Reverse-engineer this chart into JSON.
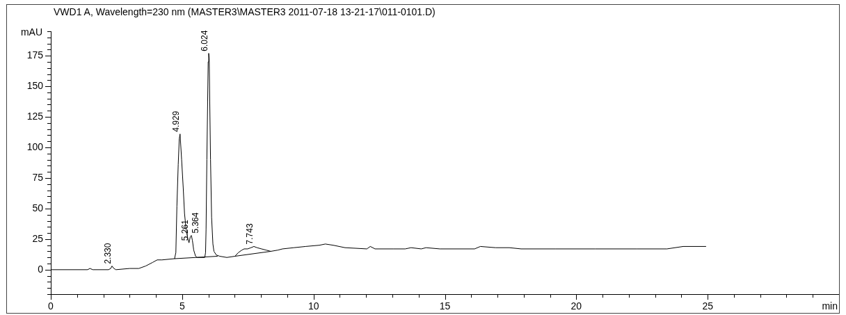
{
  "chart_data": {
    "type": "line",
    "title": "VWD1 A, Wavelength=230 nm (MASTER3\\MASTER3 2011-07-18 13-21-17\\011-0101.D)",
    "xlabel": "min",
    "ylabel": "mAU",
    "xlim": [
      0,
      30
    ],
    "ylim": [
      -20,
      195
    ],
    "xticks": [
      0,
      {
        "value": 1,
        "label": null
      },
      {
        "value": 2,
        "label": null
      },
      {
        "value": 3,
        "label": null
      },
      {
        "value": 4,
        "label": null
      },
      5,
      {
        "value": 6,
        "label": null
      },
      {
        "value": 7,
        "label": null
      },
      {
        "value": 8,
        "label": null
      },
      {
        "value": 9,
        "label": null
      },
      10,
      {
        "value": 11,
        "label": null
      },
      {
        "value": 12,
        "label": null
      },
      {
        "value": 13,
        "label": null
      },
      {
        "value": 14,
        "label": null
      },
      15,
      {
        "value": 16,
        "label": null
      },
      {
        "value": 17,
        "label": null
      },
      {
        "value": 18,
        "label": null
      },
      {
        "value": 19,
        "label": null
      },
      20,
      {
        "value": 21,
        "label": null
      },
      {
        "value": 22,
        "label": null
      },
      {
        "value": 23,
        "label": null
      },
      {
        "value": 24,
        "label": null
      },
      25,
      {
        "value": 26,
        "label": null
      },
      {
        "value": 27,
        "label": null
      },
      {
        "value": 28,
        "label": null
      },
      {
        "value": 29,
        "label": null
      }
    ],
    "yticks": [
      {
        "value": -20,
        "label": null
      },
      {
        "value": -15,
        "label": null
      },
      {
        "value": -10,
        "label": null
      },
      {
        "value": -5,
        "label": null
      },
      0,
      {
        "value": 5,
        "label": null
      },
      {
        "value": 10,
        "label": null
      },
      {
        "value": 15,
        "label": null
      },
      {
        "value": 20,
        "label": null
      },
      25,
      {
        "value": 30,
        "label": null
      },
      {
        "value": 35,
        "label": null
      },
      {
        "value": 40,
        "label": null
      },
      {
        "value": 45,
        "label": null
      },
      50,
      {
        "value": 55,
        "label": null
      },
      {
        "value": 60,
        "label": null
      },
      {
        "value": 65,
        "label": null
      },
      {
        "value": 70,
        "label": null
      },
      75,
      {
        "value": 80,
        "label": null
      },
      {
        "value": 85,
        "label": null
      },
      {
        "value": 90,
        "label": null
      },
      {
        "value": 95,
        "label": null
      },
      100,
      {
        "value": 105,
        "label": null
      },
      {
        "value": 110,
        "label": null
      },
      {
        "value": 115,
        "label": null
      },
      {
        "value": 120,
        "label": null
      },
      125,
      {
        "value": 130,
        "label": null
      },
      {
        "value": 135,
        "label": null
      },
      {
        "value": 140,
        "label": null
      },
      {
        "value": 145,
        "label": null
      },
      150,
      {
        "value": 155,
        "label": null
      },
      {
        "value": 160,
        "label": null
      },
      {
        "value": 165,
        "label": null
      },
      {
        "value": 170,
        "label": null
      },
      175,
      {
        "value": 180,
        "label": null
      },
      {
        "value": 185,
        "label": null
      },
      {
        "value": 190,
        "label": null
      },
      {
        "value": 195,
        "label": null
      }
    ],
    "marker": "none",
    "series": [
      {
        "color": "#000000",
        "x": [
          0,
          1.4,
          1.49,
          1.6,
          2.2,
          2.28,
          2.33,
          2.4,
          2.48,
          3.0,
          3.35,
          3.61,
          3.88,
          4.05,
          4.23,
          4.71,
          4.76,
          4.8,
          4.85,
          4.89,
          4.92,
          4.98,
          5.04,
          5.09,
          5.15,
          5.22,
          5.26,
          5.31,
          5.35,
          5.39,
          5.44,
          5.51,
          5.57,
          5.86,
          5.89,
          5.91,
          5.94,
          5.97,
          5.99,
          6.01,
          6.03,
          6.05,
          6.08,
          6.12,
          6.17,
          6.21,
          6.3,
          6.43,
          6.7,
          7.01,
          7.14,
          7.27,
          7.36,
          7.49,
          7.62,
          7.73,
          7.85,
          8.02,
          8.2,
          8.37,
          8.64,
          8.82,
          9.25,
          9.7,
          10.22,
          10.45,
          10.75,
          11.2,
          12.03,
          12.16,
          12.34,
          13.05,
          13.49,
          13.71,
          14.1,
          14.28,
          14.81,
          16.13,
          16.35,
          16.93,
          17.45,
          17.9,
          19.22,
          20.72,
          22.3,
          23.45,
          24.07,
          24.93
        ],
        "values": [
          0,
          0,
          1,
          0,
          0,
          1,
          3,
          1,
          0,
          1,
          1,
          3,
          6,
          8,
          8,
          9,
          14,
          52,
          86,
          107,
          111,
          90,
          67,
          46,
          33,
          25,
          22,
          27,
          28,
          24,
          16,
          11,
          10,
          10,
          14,
          33,
          90,
          137,
          170,
          177,
          173,
          137,
          90,
          43,
          21,
          15,
          12,
          11,
          10,
          11,
          14,
          16,
          17,
          17,
          18,
          19,
          18,
          17,
          16,
          15,
          16,
          17,
          18,
          19,
          20,
          21,
          20,
          18,
          17,
          19,
          17,
          17,
          17,
          18,
          17,
          18,
          17,
          17,
          19,
          18,
          18,
          17,
          17,
          17,
          17,
          17,
          19,
          19
        ]
      },
      {
        "color": "#000000",
        "x": [
          4.71,
          6.34
        ],
        "values": [
          9,
          11
        ]
      },
      {
        "color": "#000000",
        "x": [
          7.01,
          8.37
        ],
        "values": [
          11,
          15
        ]
      }
    ],
    "annotations": [
      {
        "text": "2.330",
        "x": 2.33,
        "y": 3
      },
      {
        "text": "4.929",
        "x": 4.92,
        "y": 111
      },
      {
        "text": "5.261",
        "x": 5.26,
        "y": 22
      },
      {
        "text": "5.364",
        "x": 5.35,
        "y": 28
      },
      {
        "text": "6.024",
        "x": 6.01,
        "y": 177
      },
      {
        "text": "7.743",
        "x": 7.73,
        "y": 19
      }
    ]
  }
}
